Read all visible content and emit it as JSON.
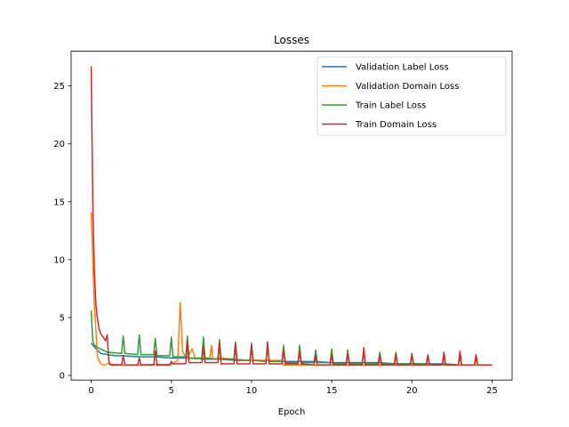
{
  "chart_data": {
    "type": "line",
    "title": "Losses",
    "xlabel": "Epoch",
    "ylabel": "",
    "xlim": [
      -1.25,
      26.25
    ],
    "ylim": [
      -0.4,
      28.0
    ],
    "xticks": [
      0,
      5,
      10,
      15,
      20,
      25
    ],
    "yticks": [
      0,
      5,
      10,
      15,
      20,
      25
    ],
    "grid": false,
    "legend_position": "top-right",
    "series": [
      {
        "name": "Validation Label Loss",
        "color": "#1f77b4",
        "x": [
          0,
          0.3,
          0.6,
          1,
          1.5,
          2,
          3,
          4,
          5,
          6,
          7,
          8,
          9,
          10,
          11,
          12,
          13,
          14,
          15,
          16,
          17,
          18,
          19,
          20,
          21,
          22,
          23,
          24,
          25
        ],
        "y": [
          2.8,
          2.3,
          1.9,
          1.8,
          1.7,
          1.7,
          1.6,
          1.6,
          1.5,
          1.5,
          1.4,
          1.4,
          1.3,
          1.3,
          1.3,
          1.2,
          1.2,
          1.2,
          1.1,
          1.1,
          1.1,
          1.1,
          1.0,
          1.0,
          1.0,
          1.0,
          0.9,
          0.9,
          0.9
        ]
      },
      {
        "name": "Validation Domain Loss",
        "color": "#ff7f0e",
        "x": [
          0,
          0.2,
          0.4,
          0.6,
          0.8,
          1,
          1.5,
          2,
          3,
          4,
          5,
          5.4,
          5.55,
          5.7,
          6,
          6.3,
          6.5,
          7,
          7.4,
          7.5,
          7.6,
          8,
          9,
          10,
          11,
          11.8,
          12,
          13,
          14,
          15,
          16,
          17,
          18,
          19,
          20,
          21,
          22,
          23,
          24,
          25
        ],
        "y": [
          14.1,
          6.0,
          1.5,
          1.0,
          0.9,
          1.0,
          0.95,
          0.9,
          0.9,
          0.95,
          0.95,
          1.3,
          6.3,
          2.0,
          1.5,
          2.3,
          1.4,
          1.5,
          1.5,
          2.6,
          1.4,
          1.5,
          1.4,
          1.3,
          1.3,
          1.3,
          0.9,
          0.9,
          0.9,
          0.9,
          0.9,
          0.9,
          0.9,
          0.9,
          0.9,
          0.9,
          0.9,
          0.9,
          0.9,
          0.9
        ]
      },
      {
        "name": "Train Label Loss",
        "color": "#2ca02c",
        "x": [
          0,
          0.1,
          0.2,
          0.4,
          0.7,
          1,
          1.9,
          2,
          2.1,
          2.9,
          3,
          3.1,
          3.9,
          4,
          4.1,
          4.9,
          5,
          5.1,
          5.9,
          6,
          6.1,
          6.9,
          7,
          7.1,
          7.9,
          8,
          8.1,
          8.9,
          9,
          9.1,
          9.9,
          10,
          10.1,
          10.9,
          11,
          11.1,
          11.9,
          12,
          12.1,
          12.9,
          13,
          13.1,
          13.9,
          14,
          14.1,
          14.9,
          15,
          15.1,
          15.9,
          16,
          16.1,
          16.9,
          17,
          17.1,
          17.9,
          18,
          18.1,
          18.9,
          19,
          19.1,
          19.9,
          20,
          20.1,
          20.9,
          21,
          21.1,
          21.9,
          22,
          22.1,
          22.9,
          23,
          23.1,
          23.9,
          24,
          24.1,
          25
        ],
        "y": [
          5.6,
          3.0,
          2.6,
          2.4,
          2.2,
          2.0,
          1.9,
          3.4,
          1.9,
          1.8,
          3.5,
          1.8,
          1.8,
          3.2,
          1.7,
          1.7,
          3.3,
          1.6,
          1.6,
          3.4,
          1.5,
          1.5,
          3.3,
          1.5,
          1.4,
          3.1,
          1.4,
          1.4,
          2.9,
          1.3,
          1.3,
          2.8,
          1.3,
          1.2,
          2.7,
          1.2,
          1.2,
          2.6,
          1.1,
          1.1,
          2.6,
          1.1,
          1.1,
          2.2,
          1.1,
          1.1,
          2.3,
          1.0,
          1.0,
          2.2,
          1.0,
          1.0,
          2.1,
          1.0,
          1.0,
          2.0,
          1.0,
          1.0,
          2.0,
          1.0,
          1.0,
          1.9,
          1.0,
          1.0,
          1.8,
          0.9,
          0.9,
          1.7,
          0.9,
          0.9,
          1.6,
          0.9,
          0.9,
          1.5,
          0.9,
          0.9
        ]
      },
      {
        "name": "Train Domain Loss",
        "color": "#d62728",
        "x": [
          0,
          0.1,
          0.2,
          0.3,
          0.4,
          0.5,
          0.6,
          0.8,
          0.9,
          1.0,
          1.1,
          1.2,
          1.9,
          2.0,
          2.1,
          2.9,
          3.0,
          3.1,
          3.9,
          4.0,
          4.1,
          4.9,
          5.0,
          5.1,
          5.9,
          6.0,
          6.1,
          6.9,
          7.0,
          7.1,
          7.9,
          8.0,
          8.1,
          8.9,
          9.0,
          9.1,
          9.9,
          10.0,
          10.1,
          10.9,
          11.0,
          11.1,
          11.9,
          12.0,
          12.1,
          12.9,
          13.0,
          13.1,
          13.9,
          14.0,
          14.1,
          14.9,
          15.0,
          15.1,
          15.9,
          16.0,
          16.1,
          16.9,
          17.0,
          17.1,
          17.9,
          18.0,
          18.1,
          18.9,
          19.0,
          19.1,
          19.9,
          20.0,
          20.1,
          20.9,
          21.0,
          21.1,
          21.9,
          22.0,
          22.1,
          22.9,
          23.0,
          23.1,
          23.9,
          24.0,
          24.1,
          25
        ],
        "y": [
          26.7,
          15.0,
          9.0,
          6.0,
          4.8,
          4.0,
          3.6,
          3.2,
          3.0,
          3.5,
          1.2,
          0.9,
          0.9,
          1.7,
          0.9,
          0.9,
          1.5,
          0.9,
          0.9,
          2.1,
          0.9,
          0.9,
          1.2,
          1.0,
          1.0,
          2.8,
          1.1,
          1.1,
          2.5,
          1.1,
          1.1,
          2.8,
          1.0,
          1.0,
          2.7,
          1.0,
          1.0,
          2.6,
          1.0,
          1.0,
          2.9,
          1.0,
          1.0,
          2.2,
          1.0,
          1.0,
          2.1,
          1.0,
          0.9,
          1.7,
          0.9,
          0.9,
          1.8,
          0.9,
          0.9,
          1.9,
          0.9,
          0.9,
          2.4,
          0.9,
          0.9,
          1.7,
          0.9,
          0.9,
          1.8,
          0.9,
          0.9,
          1.8,
          0.9,
          0.9,
          1.7,
          0.9,
          0.9,
          2.0,
          0.9,
          0.9,
          2.1,
          0.9,
          0.9,
          1.8,
          0.9,
          0.9
        ]
      }
    ]
  }
}
